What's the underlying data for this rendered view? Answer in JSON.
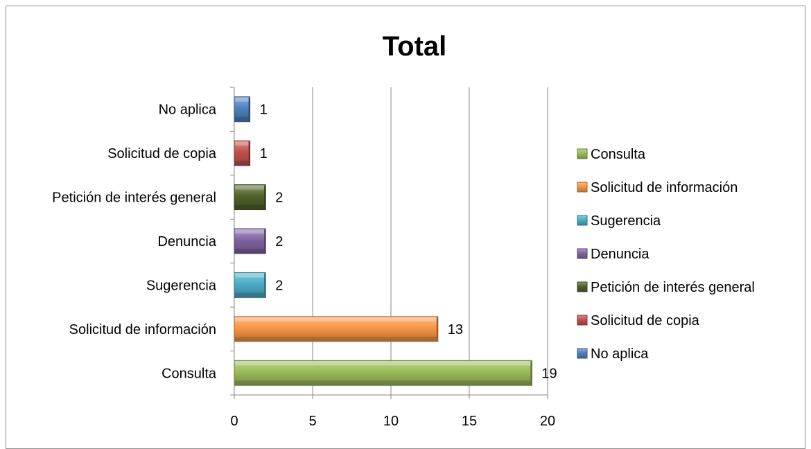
{
  "chart_data": {
    "type": "bar",
    "orientation": "horizontal",
    "title": "Total",
    "xlabel": "",
    "ylabel": "",
    "xlim": [
      0,
      20
    ],
    "x_ticks": [
      0,
      5,
      10,
      15,
      20
    ],
    "grid": "vertical-major",
    "legend_position": "right",
    "categories": [
      "Consulta",
      "Solicitud de información",
      "Sugerencia",
      "Denuncia",
      "Petición de interés general",
      "Solicitud de copia",
      "No aplica"
    ],
    "values": [
      19,
      13,
      2,
      2,
      2,
      1,
      1
    ],
    "colors": [
      "#9bbb59",
      "#f79646",
      "#4bacc6",
      "#8064a2",
      "#4f6228",
      "#c0504d",
      "#4f81bd"
    ],
    "legend": [
      "Consulta",
      "Solicitud de información",
      "Sugerencia",
      "Denuncia",
      "Petición de interés general",
      "Solicitud de copia",
      "No aplica"
    ]
  }
}
